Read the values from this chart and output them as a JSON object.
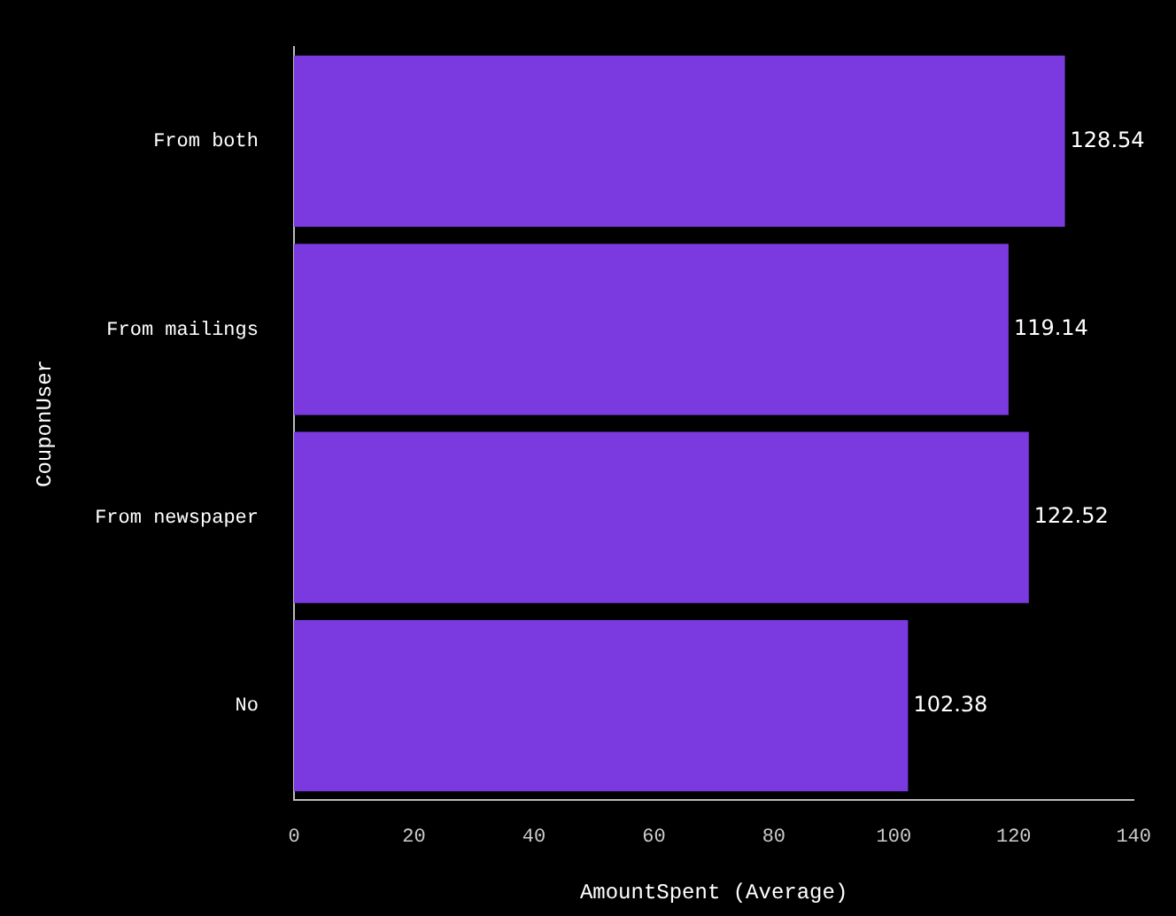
{
  "chart_data": {
    "type": "bar",
    "orientation": "horizontal",
    "categories": [
      "From both",
      "From mailings",
      "From newspaper",
      "No"
    ],
    "values": [
      128.54,
      119.14,
      122.52,
      102.38
    ],
    "color": "#7b3ae0",
    "xlabel": "AmountSpent (Average)",
    "ylabel": "CouponUser",
    "xlim": [
      0,
      140
    ],
    "xticks": [
      0,
      20,
      40,
      60,
      80,
      100,
      120,
      140
    ],
    "data_labels": true,
    "grid": false,
    "legend": false
  }
}
